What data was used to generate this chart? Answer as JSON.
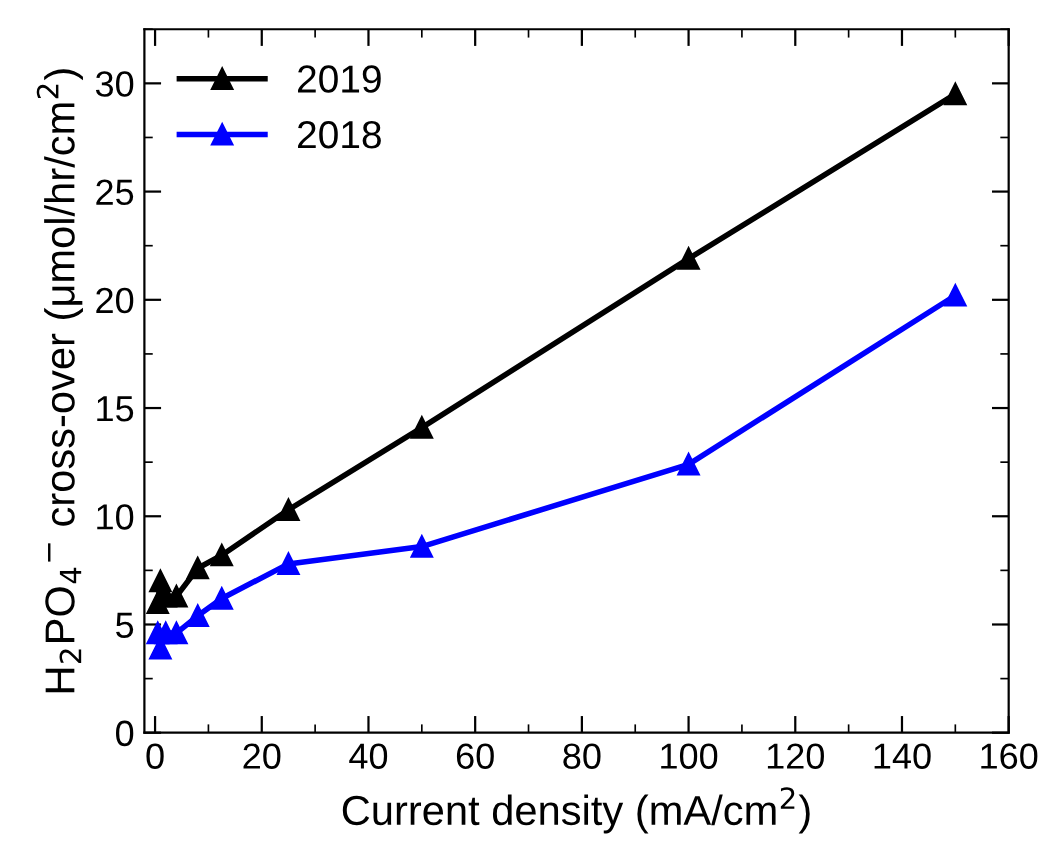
{
  "chart_data": {
    "type": "line",
    "xlabel": "Current density (mA/cm$^{2}$)",
    "ylabel": "H$_{2}$PO$_{4}$$^{−}$ cross-over (μmol/hr/cm$^{2}$)",
    "x": [
      0.5,
      1,
      2,
      4,
      8,
      12.5,
      25,
      50,
      100,
      150
    ],
    "series": [
      {
        "name": "2019",
        "color": "#000000",
        "values": [
          6.0,
          7.0,
          6.3,
          6.3,
          7.6,
          8.2,
          10.3,
          14.1,
          21.9,
          29.5
        ]
      },
      {
        "name": "2018",
        "color": "#0000ff",
        "values": [
          4.6,
          3.9,
          4.6,
          4.6,
          5.4,
          6.2,
          7.8,
          8.6,
          12.4,
          20.2
        ]
      }
    ],
    "xlim": [
      -2,
      160
    ],
    "ylim": [
      0,
      32.5
    ],
    "xticks": [
      0,
      20,
      40,
      60,
      80,
      100,
      120,
      140,
      160
    ],
    "yticks": [
      0,
      5,
      10,
      15,
      20,
      25,
      30
    ],
    "marker": "triangle",
    "line_style": "solid",
    "legend": "top left",
    "grid": false
  }
}
